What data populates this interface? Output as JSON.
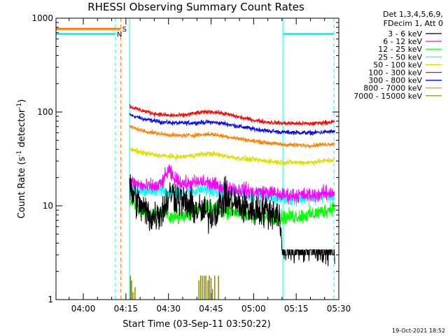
{
  "chart_data": {
    "type": "line",
    "title": "RHESSI Observing Summary Count Rates",
    "xlabel": "Start Time (03-Sep-11 03:50:22)",
    "ylabel": "Count Rate (s",
    "ylabel_sup1": "-1",
    "ylabel_mid": " detector",
    "ylabel_sup2": "-1",
    "ylabel_end": ")",
    "y_scale": "log",
    "ylim": [
      1,
      1000
    ],
    "xlim_minutes": [
      230.37,
      330.0
    ],
    "x_ticks": [
      {
        "label": "04:00",
        "m": 240
      },
      {
        "label": "04:15",
        "m": 255
      },
      {
        "label": "04:30",
        "m": 270
      },
      {
        "label": "04:45",
        "m": 285
      },
      {
        "label": "05:00",
        "m": 300
      },
      {
        "label": "05:15",
        "m": 315
      },
      {
        "label": "05:30",
        "m": 330
      }
    ],
    "y_ticks": [
      {
        "label": "1",
        "v": 1
      },
      {
        "label": "10",
        "v": 10
      },
      {
        "label": "100",
        "v": 100
      },
      {
        "label": "1000",
        "v": 1000
      }
    ],
    "legend_position": "right",
    "legend_header": [
      "Det 1,3,4,5,6,9,",
      "FDecim 1, Att 0"
    ],
    "series": [
      {
        "name": "3 - 6 keV",
        "color": "#000000",
        "start_m": 256.3,
        "end_m": 328.6,
        "points": [
          [
            256.3,
            15
          ],
          [
            260,
            10
          ],
          [
            264,
            7.5
          ],
          [
            268,
            9
          ],
          [
            271,
            14
          ],
          [
            275,
            11
          ],
          [
            280,
            9
          ],
          [
            285,
            8
          ],
          [
            290,
            12
          ],
          [
            295,
            10
          ],
          [
            300,
            9
          ],
          [
            305,
            9
          ],
          [
            309,
            8
          ],
          [
            310,
            3.4
          ],
          [
            328.6,
            3.4
          ]
        ],
        "noise": 0.16
      },
      {
        "name": "6 - 12 keV",
        "color": "#ff00ff",
        "start_m": 256.3,
        "end_m": 328.6,
        "points": [
          [
            256.3,
            18
          ],
          [
            262,
            16
          ],
          [
            266,
            16
          ],
          [
            268,
            18
          ],
          [
            270,
            24
          ],
          [
            272,
            19
          ],
          [
            276,
            17
          ],
          [
            282,
            18
          ],
          [
            288,
            16
          ],
          [
            295,
            15
          ],
          [
            300,
            14
          ],
          [
            305,
            14
          ],
          [
            310,
            13
          ],
          [
            320,
            13
          ],
          [
            328.6,
            14
          ]
        ],
        "noise": 0.07
      },
      {
        "name": "12 - 25 keV",
        "color": "#00ff00",
        "start_m": 256.3,
        "end_m": 328.6,
        "points": [
          [
            256.3,
            11
          ],
          [
            260,
            9
          ],
          [
            264,
            8
          ],
          [
            268,
            8.5
          ],
          [
            272,
            7.5
          ],
          [
            276,
            8
          ],
          [
            280,
            9
          ],
          [
            284,
            9.5
          ],
          [
            288,
            8.5
          ],
          [
            292,
            9
          ],
          [
            296,
            8
          ],
          [
            300,
            8
          ],
          [
            305,
            7.5
          ],
          [
            310,
            7.5
          ],
          [
            320,
            8
          ],
          [
            326,
            9
          ],
          [
            328.6,
            10
          ]
        ],
        "noise": 0.07
      },
      {
        "name": "25 - 50 keV",
        "color": "#00ffff",
        "start_m": 256.3,
        "end_m": 328.6,
        "points": [
          [
            256.3,
            15
          ],
          [
            262,
            14
          ],
          [
            268,
            14.5
          ],
          [
            272,
            14
          ],
          [
            276,
            14
          ],
          [
            282,
            15
          ],
          [
            288,
            14
          ],
          [
            295,
            13.5
          ],
          [
            300,
            13
          ],
          [
            305,
            12.5
          ],
          [
            310,
            12
          ],
          [
            320,
            12
          ],
          [
            328.6,
            13
          ]
        ],
        "noise": 0.06
      },
      {
        "name": "50 - 100 keV",
        "color": "#dddd00",
        "start_m": 256.3,
        "end_m": 328.6,
        "points": [
          [
            256.3,
            40
          ],
          [
            262,
            36
          ],
          [
            268,
            34
          ],
          [
            274,
            33
          ],
          [
            280,
            35
          ],
          [
            285,
            36
          ],
          [
            290,
            34
          ],
          [
            295,
            32
          ],
          [
            300,
            31
          ],
          [
            310,
            29
          ],
          [
            320,
            29
          ],
          [
            328.6,
            31
          ]
        ],
        "noise": 0.025
      },
      {
        "name": "100 - 300 keV",
        "color": "#ff0000",
        "start_m": 256.3,
        "end_m": 328.6,
        "points": [
          [
            256.3,
            115
          ],
          [
            260,
            105
          ],
          [
            265,
            96
          ],
          [
            270,
            92
          ],
          [
            275,
            92
          ],
          [
            280,
            98
          ],
          [
            285,
            101
          ],
          [
            290,
            96
          ],
          [
            295,
            88
          ],
          [
            300,
            82
          ],
          [
            305,
            78
          ],
          [
            310,
            76
          ],
          [
            320,
            75
          ],
          [
            328.6,
            79
          ]
        ],
        "noise": 0.02
      },
      {
        "name": "300 - 800 keV",
        "color": "#0000ff",
        "start_m": 256.3,
        "end_m": 328.6,
        "points": [
          [
            256.3,
            93
          ],
          [
            262,
            83
          ],
          [
            268,
            78
          ],
          [
            274,
            76
          ],
          [
            280,
            77
          ],
          [
            285,
            78
          ],
          [
            290,
            75
          ],
          [
            295,
            70
          ],
          [
            300,
            66
          ],
          [
            305,
            63
          ],
          [
            310,
            61
          ],
          [
            320,
            60
          ],
          [
            328.6,
            62
          ]
        ],
        "noise": 0.02
      },
      {
        "name": "800 - 7000 keV",
        "color": "#ff8000",
        "start_m": 256.3,
        "end_m": 328.6,
        "points": [
          [
            256.3,
            70
          ],
          [
            262,
            62
          ],
          [
            268,
            58
          ],
          [
            274,
            56
          ],
          [
            280,
            57
          ],
          [
            285,
            58
          ],
          [
            290,
            55
          ],
          [
            295,
            52
          ],
          [
            300,
            49
          ],
          [
            305,
            47
          ],
          [
            310,
            45
          ],
          [
            320,
            44
          ],
          [
            328.6,
            46
          ]
        ],
        "noise": 0.02
      },
      {
        "name": "7000 - 15000 keV",
        "color": "#808000",
        "spikes": [
          [
            256.6,
            1.8
          ],
          [
            257.0,
            1.6
          ],
          [
            257.5,
            1.2
          ],
          [
            258.2,
            1.35
          ],
          [
            280.7,
            1.6
          ],
          [
            281.3,
            1.8
          ],
          [
            281.9,
            1.8
          ],
          [
            282.6,
            1.8
          ],
          [
            283.2,
            1.8
          ],
          [
            283.9,
            1.6
          ],
          [
            284.4,
            1.8
          ],
          [
            285.0,
            1.7
          ],
          [
            285.5,
            1.3
          ],
          [
            286.3,
            1.8
          ],
          [
            287.6,
            1.8
          ]
        ]
      }
    ],
    "flag_bars": [
      {
        "label": "S",
        "color": "#ff8000",
        "x1_m": 230.37,
        "x2_m": 253.2,
        "y": 770
      },
      {
        "label": "N",
        "color": "#00ffff",
        "x1_m": 230.37,
        "x2_m": 251.3,
        "y": 680
      },
      {
        "label": "",
        "color": "#00ffff",
        "x1_m": 310.3,
        "x2_m": 328.3,
        "y": 680
      }
    ],
    "vlines": [
      {
        "color": "#00ffff",
        "m": 230.37,
        "dash": false
      },
      {
        "color": "#00ffff",
        "m": 251.3,
        "dash": true
      },
      {
        "color": "#ff8000",
        "m": 253.2,
        "dash": true
      },
      {
        "color": "#00ffff",
        "m": 256.3,
        "dash": false
      },
      {
        "color": "#00ffff",
        "m": 310.3,
        "dash": false
      },
      {
        "color": "#00ffff",
        "m": 328.3,
        "dash": true
      }
    ],
    "timestamp": "19-Oct-2021 18:52"
  }
}
